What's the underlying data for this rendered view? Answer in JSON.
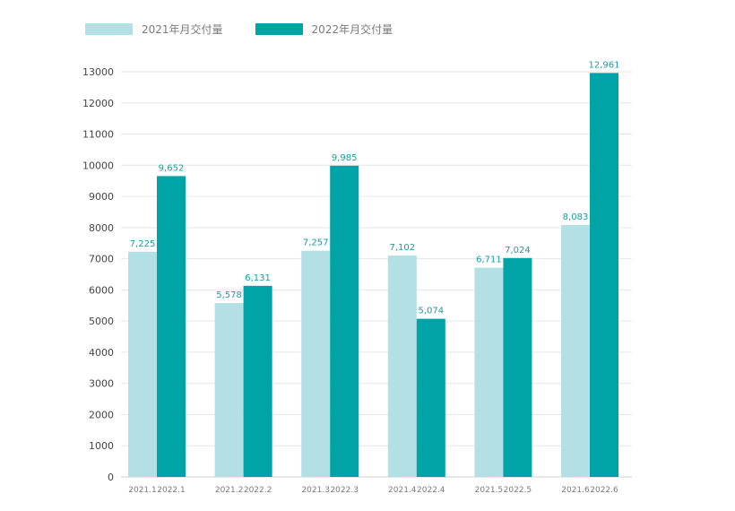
{
  "colors": {
    "series_2021": "#b2e0e4",
    "series_2022": "#00a4a6",
    "label_text": "#1f9aa0",
    "axis_text": "#444444",
    "category_text": "#7a7a7a",
    "grid": "#e6e6e6"
  },
  "legend": {
    "items": [
      {
        "label": "2021年月交付量"
      },
      {
        "label": "2022年月交付量"
      }
    ]
  },
  "chart_data": {
    "type": "bar",
    "title": "",
    "xlabel": "",
    "ylabel": "",
    "ylim": [
      0,
      13000
    ],
    "yticks": [
      0,
      1000,
      2000,
      3000,
      4000,
      5000,
      6000,
      7000,
      8000,
      9000,
      10000,
      11000,
      12000,
      13000
    ],
    "groups": [
      {
        "label_2021": "2021.1",
        "label_2022": "2022.1",
        "value_2021": 7225,
        "value_2022": 9652,
        "text_2021": "7,225",
        "text_2022": "9,652"
      },
      {
        "label_2021": "2021.2",
        "label_2022": "2022.2",
        "value_2021": 5578,
        "value_2022": 6131,
        "text_2021": "5,578",
        "text_2022": "6,131"
      },
      {
        "label_2021": "2021.3",
        "label_2022": "2022.3",
        "value_2021": 7257,
        "value_2022": 9985,
        "text_2021": "7,257",
        "text_2022": "9,985"
      },
      {
        "label_2021": "2021.4",
        "label_2022": "2022.4",
        "value_2021": 7102,
        "value_2022": 5074,
        "text_2021": "7,102",
        "text_2022": "5,074"
      },
      {
        "label_2021": "2021.5",
        "label_2022": "2022.5",
        "value_2021": 6711,
        "value_2022": 7024,
        "text_2021": "6,711",
        "text_2022": "7,024"
      },
      {
        "label_2021": "2021.6",
        "label_2022": "2022.6",
        "value_2021": 8083,
        "value_2022": 12961,
        "text_2021": "8,083",
        "text_2022": "12,961"
      }
    ],
    "series": [
      {
        "name": "2021年月交付量",
        "values": [
          7225,
          5578,
          7257,
          7102,
          6711,
          8083
        ]
      },
      {
        "name": "2022年月交付量",
        "values": [
          9652,
          6131,
          9985,
          5074,
          7024,
          12961
        ]
      }
    ]
  }
}
